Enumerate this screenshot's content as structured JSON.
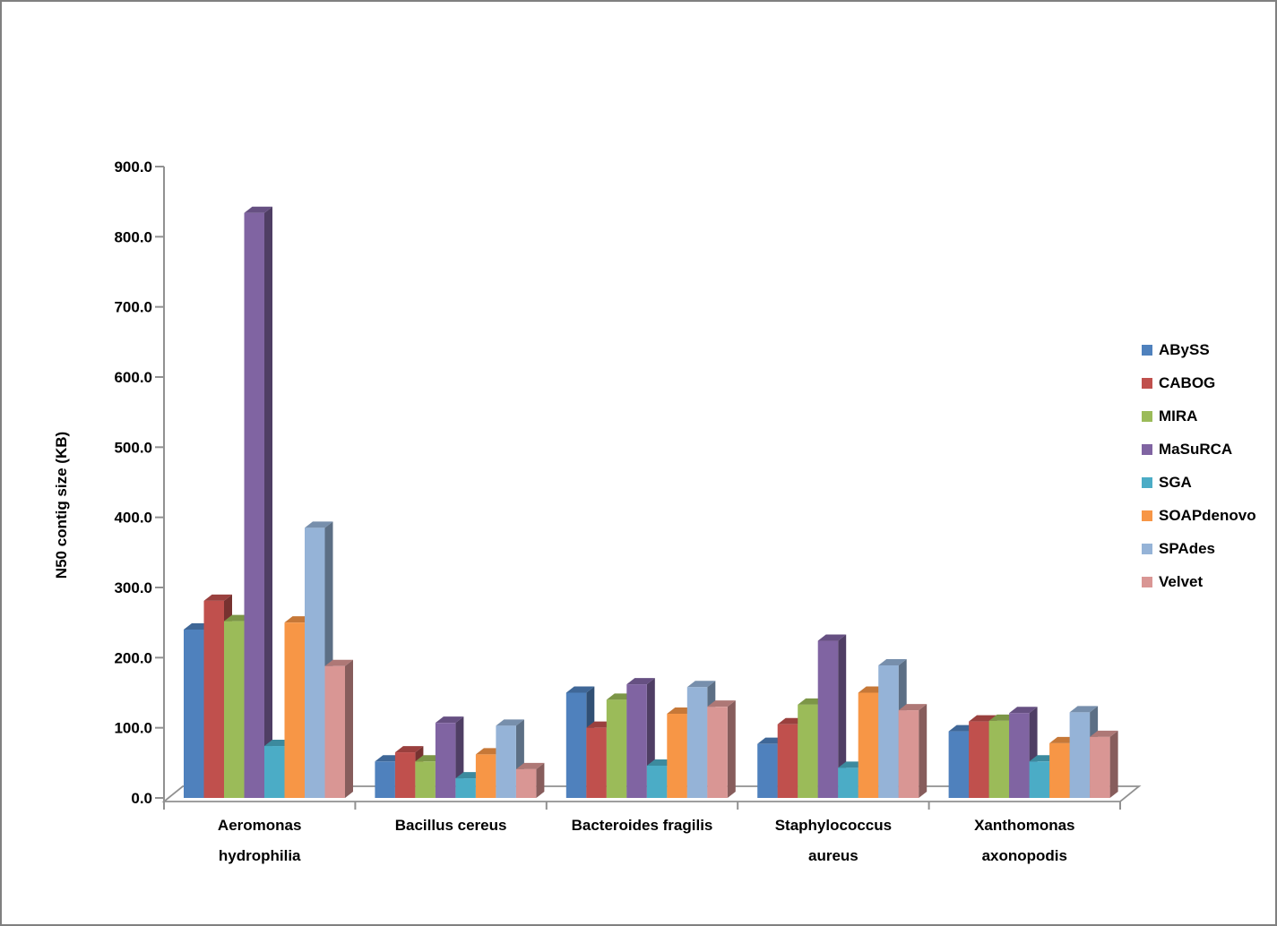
{
  "page": {
    "background": "#ffffff",
    "border_color": "#808080",
    "axis_color": "#919191",
    "text_color": "#000000"
  },
  "chart_data": {
    "type": "bar",
    "style_3d": true,
    "title": "",
    "xlabel": "",
    "ylabel": "N50 contig size (KB)",
    "ylim": [
      0,
      900
    ],
    "ytick_interval": 100,
    "yticks": [
      "0.0",
      "100.0",
      "200.0",
      "300.0",
      "400.0",
      "500.0",
      "600.0",
      "700.0",
      "800.0",
      "900.0"
    ],
    "grid": false,
    "legend_position": "right",
    "categories": [
      {
        "label": "Aeromonas hydrophilia",
        "lines": [
          "Aeromonas",
          "hydrophilia"
        ]
      },
      {
        "label": "Bacillus cereus",
        "lines": [
          "Bacillus cereus"
        ]
      },
      {
        "label": "Bacteroides fragilis",
        "lines": [
          "Bacteroides fragilis"
        ]
      },
      {
        "label": "Staphylococcus aureus",
        "lines": [
          "Staphylococcus",
          "aureus"
        ]
      },
      {
        "label": "Xanthomonas axonopodis",
        "lines": [
          "Xanthomonas",
          "axonopodis"
        ]
      }
    ],
    "series": [
      {
        "name": "ABySS",
        "color": "#4F81BD",
        "values": [
          240,
          52,
          150,
          77,
          95
        ]
      },
      {
        "name": "CABOG",
        "color": "#C0504D",
        "values": [
          281,
          65,
          100,
          105,
          109
        ]
      },
      {
        "name": "MIRA",
        "color": "#9BBB59",
        "values": [
          252,
          52,
          140,
          133,
          110
        ]
      },
      {
        "name": "MaSuRCA",
        "color": "#8064A2",
        "values": [
          834,
          107,
          162,
          224,
          121
        ]
      },
      {
        "name": "SGA",
        "color": "#4BACC6",
        "values": [
          74,
          28,
          46,
          43,
          52
        ]
      },
      {
        "name": "SOAPdenovo",
        "color": "#F79646",
        "values": [
          250,
          62,
          120,
          150,
          78
        ]
      },
      {
        "name": "SPAdes",
        "color": "#95B3D7",
        "values": [
          385,
          103,
          158,
          189,
          122
        ]
      },
      {
        "name": "Velvet",
        "color": "#D99694",
        "values": [
          188,
          41,
          130,
          125,
          87
        ]
      }
    ]
  }
}
